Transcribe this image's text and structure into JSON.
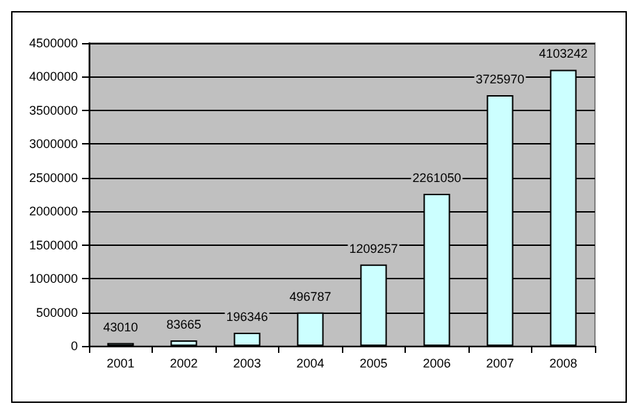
{
  "chart_data": {
    "type": "bar",
    "categories": [
      "2001",
      "2002",
      "2003",
      "2004",
      "2005",
      "2006",
      "2007",
      "2008"
    ],
    "values": [
      43010,
      83665,
      196346,
      496787,
      1209257,
      2261050,
      3725970,
      4103242
    ],
    "color": "#ccffff",
    "ylim": [
      0,
      4500000
    ],
    "yticks": [
      0,
      500000,
      1000000,
      1500000,
      2000000,
      2500000,
      3000000,
      3500000,
      4000000,
      4500000
    ],
    "grid": "y",
    "data_labels": true
  }
}
